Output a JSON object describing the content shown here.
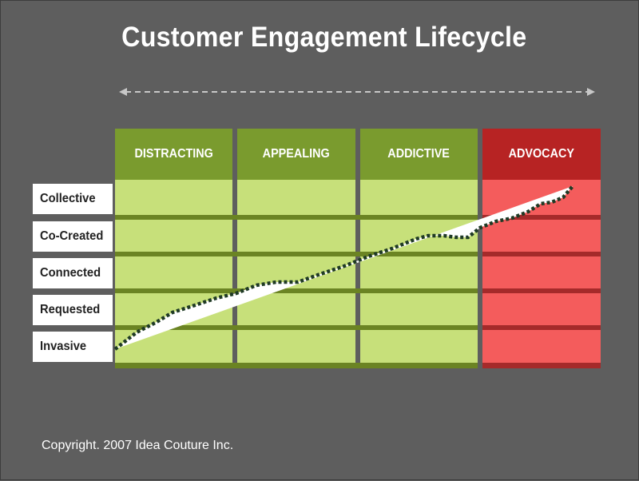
{
  "title": "Customer Engagement Lifecycle",
  "copyright": "Copyright. 2007 Idea Couture Inc.",
  "stages": [
    {
      "label": "DISTRACTING",
      "head_color": "#7a9b2e",
      "body_color": "#c7e07a"
    },
    {
      "label": "APPEALING",
      "head_color": "#7a9b2e",
      "body_color": "#c7e07a"
    },
    {
      "label": "ADDICTIVE",
      "head_color": "#7a9b2e",
      "body_color": "#c7e07a"
    },
    {
      "label": "ADVOCACY",
      "head_color": "#b72323",
      "body_color": "#f45c5c"
    }
  ],
  "levels": [
    "Collective",
    "Co-Created",
    "Connected",
    "Requested",
    "Invasive"
  ],
  "colors": {
    "background": "#5e5e5e",
    "green_divider": "#6b8423",
    "red_divider": "#a52a2a",
    "arrow": "#c8c8c8"
  }
}
